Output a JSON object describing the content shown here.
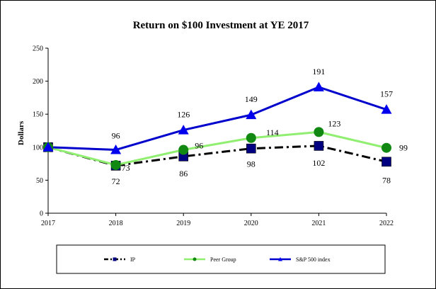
{
  "chart_data": {
    "type": "line",
    "title": "Return on $100 Investment at YE 2017",
    "xlabel": "",
    "ylabel": "Dollars",
    "categories": [
      "2017",
      "2018",
      "2019",
      "2020",
      "2021",
      "2022"
    ],
    "ylim": [
      0,
      250
    ],
    "yticks": [
      0,
      50,
      100,
      150,
      200,
      250
    ],
    "grid": false,
    "legend_position": "bottom",
    "series": [
      {
        "name": "IP",
        "values": [
          100,
          72,
          86,
          98,
          102,
          78
        ],
        "labels": [
          "",
          "72",
          "86",
          "98",
          "102",
          "78"
        ],
        "color": "#000000",
        "marker": "square",
        "marker_color": "#000080",
        "line_style": "dash-dot"
      },
      {
        "name": "Peer Group",
        "values": [
          100,
          73,
          96,
          114,
          123,
          99
        ],
        "labels": [
          "",
          "73",
          "96",
          "114",
          "123",
          "99"
        ],
        "color": "#90ee70",
        "marker": "circle",
        "marker_color": "#118811",
        "line_style": "solid"
      },
      {
        "name": "S&P 500 index",
        "values": [
          100,
          96,
          126,
          149,
          191,
          157
        ],
        "labels": [
          "",
          "96",
          "126",
          "149",
          "191",
          "157"
        ],
        "color": "#0000cc",
        "marker": "triangle",
        "marker_color": "#0000ee",
        "line_style": "solid"
      }
    ]
  }
}
